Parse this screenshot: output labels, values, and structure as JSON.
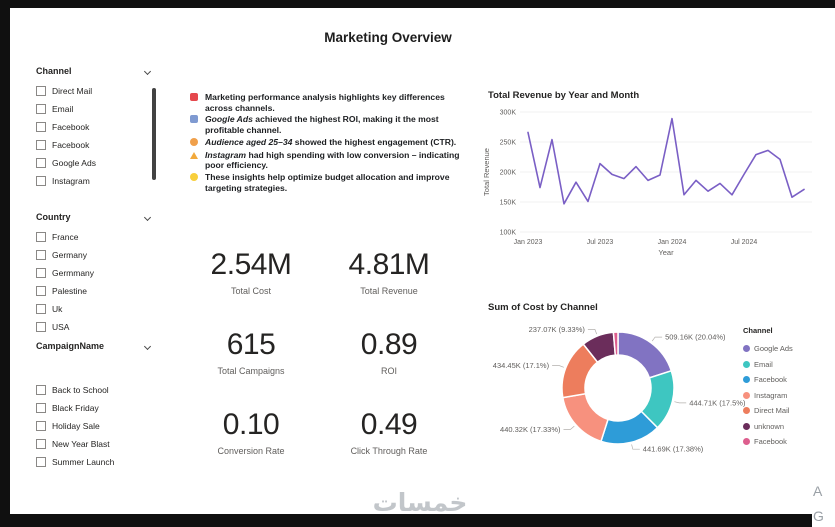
{
  "title": "Marketing Overview",
  "filters": [
    {
      "name": "Channel",
      "items": [
        "Direct Mail",
        "Email",
        "Facebook",
        "Facebook",
        "Google Ads",
        "Instagram"
      ]
    },
    {
      "name": "Country",
      "items": [
        "France",
        "Germany",
        "Germmany",
        "Palestine",
        "Uk",
        "USA"
      ]
    },
    {
      "name": "CampaignName",
      "items": [
        "Back to School",
        "Black Friday",
        "Holiday Sale",
        "New Year Blast",
        "Summer Launch"
      ]
    }
  ],
  "insights": {
    "lines": [
      {
        "icon": "chart-increasing-icon",
        "runs": [
          {
            "text": "Marketing performance analysis highlights key differences across channels."
          }
        ]
      },
      {
        "icon": "bar-chart-icon",
        "runs": [
          {
            "text": "Google Ads",
            "italic": true
          },
          {
            "text": " achieved the highest ROI, making it the most profitable channel."
          }
        ]
      },
      {
        "icon": "people-icon",
        "runs": [
          {
            "text": "Audience aged 25–34",
            "italic": true
          },
          {
            "text": " showed the highest engagement (CTR)."
          }
        ]
      },
      {
        "icon": "warning-icon",
        "runs": [
          {
            "text": "Instagram",
            "italic": true
          },
          {
            "text": " had high spending with low conversion – indicating poor efficiency."
          }
        ]
      },
      {
        "icon": "lightbulb-icon",
        "runs": [
          {
            "text": "These insights help optimize budget allocation and improve targeting strategies."
          }
        ]
      }
    ]
  },
  "kpis": [
    {
      "value": "2.54M",
      "label": "Total Cost"
    },
    {
      "value": "4.81M",
      "label": "Total Revenue"
    },
    {
      "value": "615",
      "label": "Total Campaigns"
    },
    {
      "value": "0.89",
      "label": "ROI"
    },
    {
      "value": "0.10",
      "label": "Conversion Rate"
    },
    {
      "value": "0.49",
      "label": "Click Through Rate"
    }
  ],
  "chart_data": [
    {
      "type": "line",
      "title": "Total Revenue by Year and Month",
      "xlabel": "Year",
      "ylabel": "Total Revenue",
      "ylim": [
        100000,
        300000
      ],
      "yticks": [
        "100K",
        "150K",
        "200K",
        "250K",
        "300K"
      ],
      "xticks": [
        {
          "label": "Jan 2023",
          "month_index": 0
        },
        {
          "label": "Jul 2023",
          "month_index": 6
        },
        {
          "label": "Jan 2024",
          "month_index": 12
        },
        {
          "label": "Jul 2024",
          "month_index": 18
        }
      ],
      "color": "#7a5fc5",
      "grid": true,
      "x": [
        "Jan 2023",
        "Feb 2023",
        "Mar 2023",
        "Apr 2023",
        "May 2023",
        "Jun 2023",
        "Jul 2023",
        "Aug 2023",
        "Sep 2023",
        "Oct 2023",
        "Nov 2023",
        "Dec 2023",
        "Jan 2024",
        "Feb 2024",
        "Mar 2024",
        "Apr 2024",
        "May 2024",
        "Jun 2024",
        "Jul 2024",
        "Aug 2024",
        "Sep 2024",
        "Oct 2024",
        "Nov 2024",
        "Dec 2024"
      ],
      "values_k": [
        266,
        174,
        254,
        147,
        183,
        151,
        214,
        196,
        189,
        209,
        186,
        195,
        289,
        162,
        186,
        168,
        181,
        162,
        196,
        229,
        236,
        221,
        158,
        171
      ]
    },
    {
      "type": "pie",
      "subtype": "donut",
      "title": "Sum of Cost by Channel",
      "legend_title": "Channel",
      "legend_position": "right",
      "legend": [
        {
          "label": "Google Ads",
          "color": "#8173c2"
        },
        {
          "label": "Email",
          "color": "#3ec6c1"
        },
        {
          "label": "Facebook",
          "color": "#2e9cd8"
        },
        {
          "label": "Instagram",
          "color": "#f7917e"
        },
        {
          "label": "Direct Mail",
          "color": "#ed7d5d"
        },
        {
          "label": "unknown",
          "color": "#6b2d5b"
        },
        {
          "label": "Facebook",
          "color": "#dd5e8e"
        }
      ],
      "segments": [
        {
          "name": "Google Ads",
          "value": "509.16K",
          "pct": 20.04,
          "color": "#8173c2",
          "label": "509.16K (20.04%)"
        },
        {
          "name": "Email",
          "value": "444.71K",
          "pct": 17.5,
          "color": "#3ec6c1",
          "label": "444.71K (17.5%)"
        },
        {
          "name": "Facebook",
          "value": "441.69K",
          "pct": 17.38,
          "color": "#2e9cd8",
          "label": "441.69K (17.38%)"
        },
        {
          "name": "Instagram",
          "value": "440.32K",
          "pct": 17.33,
          "color": "#f7917e",
          "label": "440.32K (17.33%)"
        },
        {
          "name": "Direct Mail",
          "value": "434.45K",
          "pct": 17.1,
          "color": "#ed7d5d",
          "label": "434.45K (17.1%)"
        },
        {
          "name": "unknown",
          "value": "237.07K",
          "pct": 9.33,
          "color": "#6b2d5b",
          "label": "237.07K (9.33%)"
        },
        {
          "name": "Facebook",
          "value": null,
          "pct": 1.32,
          "color": "#dd5e8e",
          "label": null
        }
      ]
    }
  ],
  "watermark": "خمسات",
  "side_letters": [
    "A",
    "G"
  ]
}
